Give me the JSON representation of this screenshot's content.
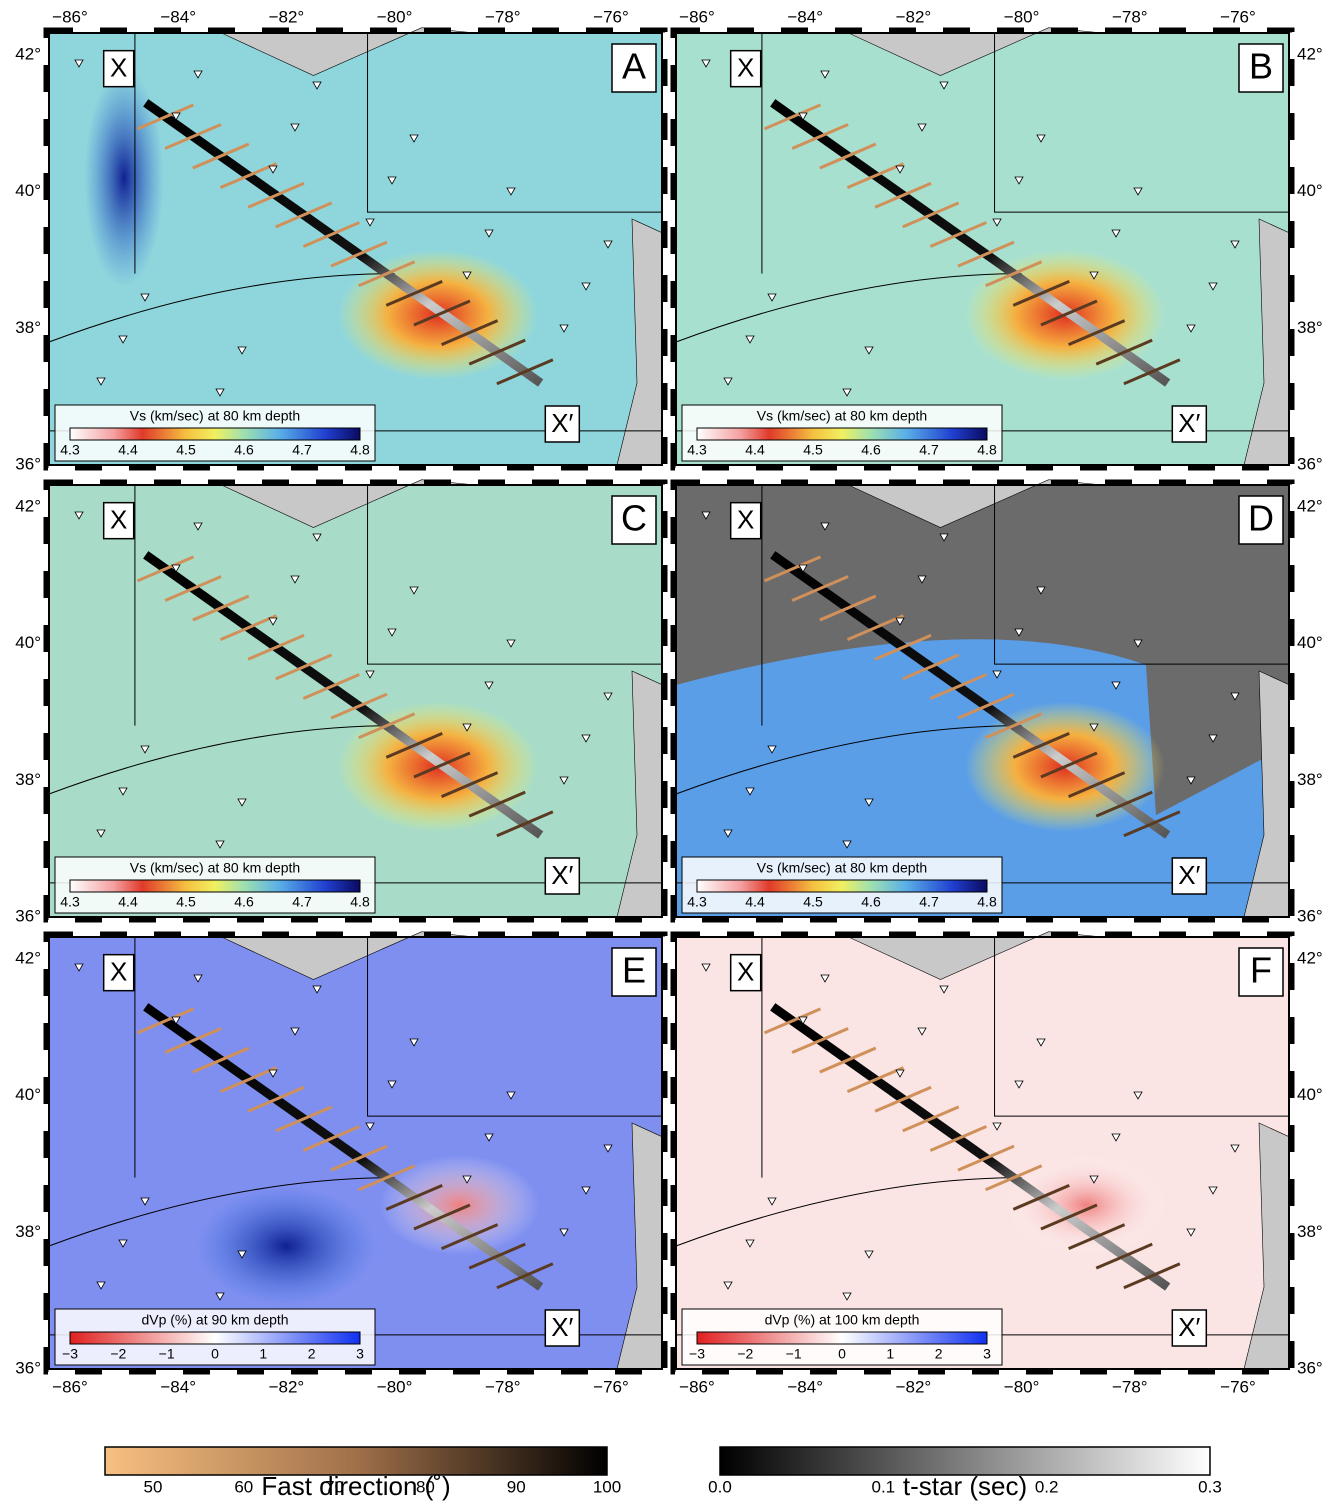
{
  "lon_ticks": [
    "−86°",
    "−84°",
    "−82°",
    "−80°",
    "−78°",
    "−76°"
  ],
  "lat_ticks": [
    "42°",
    "40°",
    "38°",
    "36°"
  ],
  "profile_start": "X",
  "profile_end": "X′",
  "panels": [
    {
      "letter": "A",
      "legend_title": "Vs (km/sec) at 80 km depth",
      "legend_ticks": [
        "4.3",
        "4.4",
        "4.5",
        "4.6",
        "4.7",
        "4.8"
      ]
    },
    {
      "letter": "B",
      "legend_title": "Vs (km/sec) at 80 km depth",
      "legend_ticks": [
        "4.3",
        "4.4",
        "4.5",
        "4.6",
        "4.7",
        "4.8"
      ]
    },
    {
      "letter": "C",
      "legend_title": "Vs (km/sec) at 80 km depth",
      "legend_ticks": [
        "4.3",
        "4.4",
        "4.5",
        "4.6",
        "4.7",
        "4.8"
      ]
    },
    {
      "letter": "D",
      "legend_title": "Vs (km/sec) at 80 km depth",
      "legend_ticks": [
        "4.3",
        "4.4",
        "4.5",
        "4.6",
        "4.7",
        "4.8"
      ]
    },
    {
      "letter": "E",
      "legend_title": "dVp (%) at 90 km depth",
      "legend_ticks": [
        "−3",
        "−2",
        "−1",
        "0",
        "1",
        "2",
        "3"
      ]
    },
    {
      "letter": "F",
      "legend_title": "dVp (%) at 100 km depth",
      "legend_ticks": [
        "−3",
        "−2",
        "−1",
        "0",
        "1",
        "2",
        "3"
      ]
    }
  ],
  "colorbars": [
    {
      "title": "Fast direction (˚)",
      "ticks": [
        "50",
        "60",
        "70",
        "80",
        "90",
        "100"
      ]
    },
    {
      "title": "t-star (sec)",
      "ticks": [
        "0.0",
        "0.1",
        "0.2",
        "0.3"
      ]
    }
  ]
}
